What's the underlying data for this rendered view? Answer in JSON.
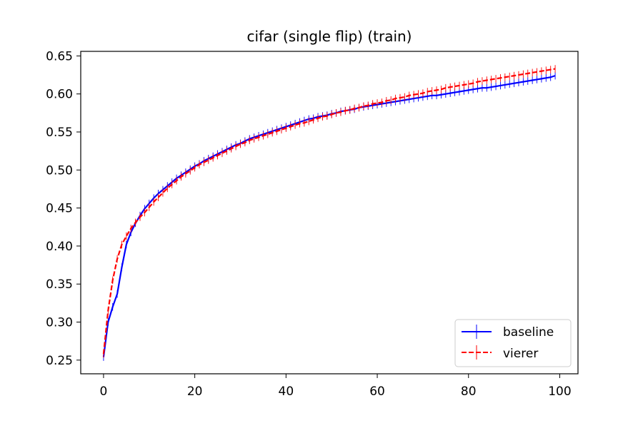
{
  "chart_data": {
    "type": "line",
    "title": "cifar (single flip) (train)",
    "xlabel": "",
    "ylabel": "",
    "xlim": [
      -5,
      104
    ],
    "ylim": [
      0.232,
      0.656
    ],
    "xticks": [
      0,
      20,
      40,
      60,
      80,
      100
    ],
    "yticks": [
      0.25,
      0.3,
      0.35,
      0.4,
      0.45,
      0.5,
      0.55,
      0.6,
      0.65
    ],
    "xtick_labels": [
      "0",
      "20",
      "40",
      "60",
      "80",
      "100"
    ],
    "ytick_labels": [
      "0.25",
      "0.30",
      "0.35",
      "0.40",
      "0.45",
      "0.50",
      "0.55",
      "0.60",
      "0.65"
    ],
    "grid": false,
    "legend_position": "lower-right",
    "error_bars": "vertical",
    "series": [
      {
        "name": "baseline",
        "color": "#0000ff",
        "line_style": "solid",
        "x": [
          0,
          1,
          2,
          3,
          4,
          5,
          6,
          7,
          8,
          9,
          10,
          11,
          12,
          13,
          14,
          15,
          16,
          17,
          18,
          19,
          20,
          21,
          22,
          23,
          24,
          25,
          26,
          27,
          28,
          29,
          30,
          31,
          32,
          33,
          34,
          35,
          36,
          37,
          38,
          39,
          40,
          41,
          42,
          43,
          44,
          45,
          46,
          47,
          48,
          49,
          50,
          51,
          52,
          53,
          54,
          55,
          56,
          57,
          58,
          59,
          60,
          61,
          62,
          63,
          64,
          65,
          66,
          67,
          68,
          69,
          70,
          71,
          72,
          73,
          74,
          75,
          76,
          77,
          78,
          79,
          80,
          81,
          82,
          83,
          84,
          85,
          86,
          87,
          88,
          89,
          90,
          91,
          92,
          93,
          94,
          95,
          96,
          97,
          98,
          99
        ],
        "y": [
          0.254,
          0.3,
          0.32,
          0.337,
          0.372,
          0.402,
          0.418,
          0.43,
          0.44,
          0.449,
          0.456,
          0.463,
          0.469,
          0.474,
          0.479,
          0.484,
          0.489,
          0.493,
          0.497,
          0.501,
          0.505,
          0.508,
          0.512,
          0.515,
          0.518,
          0.521,
          0.524,
          0.527,
          0.53,
          0.533,
          0.535,
          0.538,
          0.541,
          0.543,
          0.545,
          0.547,
          0.549,
          0.551,
          0.553,
          0.555,
          0.557,
          0.559,
          0.561,
          0.563,
          0.565,
          0.567,
          0.568,
          0.57,
          0.571,
          0.572,
          0.574,
          0.575,
          0.577,
          0.578,
          0.579,
          0.58,
          0.582,
          0.583,
          0.584,
          0.585,
          0.586,
          0.587,
          0.588,
          0.589,
          0.59,
          0.591,
          0.592,
          0.593,
          0.594,
          0.595,
          0.596,
          0.597,
          0.598,
          0.598,
          0.599,
          0.6,
          0.601,
          0.602,
          0.603,
          0.604,
          0.605,
          0.606,
          0.607,
          0.608,
          0.608,
          0.609,
          0.61,
          0.611,
          0.612,
          0.613,
          0.614,
          0.615,
          0.616,
          0.617,
          0.618,
          0.619,
          0.62,
          0.621,
          0.622,
          0.624
        ],
        "err": 0.005
      },
      {
        "name": "vierer",
        "color": "#ff0000",
        "line_style": "dashed",
        "x": [
          0,
          1,
          2,
          3,
          4,
          5,
          6,
          7,
          8,
          9,
          10,
          11,
          12,
          13,
          14,
          15,
          16,
          17,
          18,
          19,
          20,
          21,
          22,
          23,
          24,
          25,
          26,
          27,
          28,
          29,
          30,
          31,
          32,
          33,
          34,
          35,
          36,
          37,
          38,
          39,
          40,
          41,
          42,
          43,
          44,
          45,
          46,
          47,
          48,
          49,
          50,
          51,
          52,
          53,
          54,
          55,
          56,
          57,
          58,
          59,
          60,
          61,
          62,
          63,
          64,
          65,
          66,
          67,
          68,
          69,
          70,
          71,
          72,
          73,
          74,
          75,
          76,
          77,
          78,
          79,
          80,
          81,
          82,
          83,
          84,
          85,
          86,
          87,
          88,
          89,
          90,
          91,
          92,
          93,
          94,
          95,
          96,
          97,
          98,
          99
        ],
        "y": [
          0.258,
          0.315,
          0.355,
          0.383,
          0.402,
          0.413,
          0.423,
          0.431,
          0.438,
          0.444,
          0.451,
          0.458,
          0.464,
          0.47,
          0.476,
          0.481,
          0.486,
          0.491,
          0.495,
          0.499,
          0.503,
          0.507,
          0.51,
          0.513,
          0.516,
          0.519,
          0.522,
          0.525,
          0.528,
          0.531,
          0.534,
          0.536,
          0.539,
          0.541,
          0.543,
          0.545,
          0.547,
          0.549,
          0.551,
          0.553,
          0.555,
          0.557,
          0.559,
          0.561,
          0.562,
          0.564,
          0.566,
          0.568,
          0.57,
          0.571,
          0.573,
          0.575,
          0.576,
          0.578,
          0.579,
          0.581,
          0.582,
          0.584,
          0.585,
          0.587,
          0.588,
          0.589,
          0.591,
          0.592,
          0.594,
          0.595,
          0.596,
          0.598,
          0.599,
          0.6,
          0.601,
          0.603,
          0.604,
          0.605,
          0.606,
          0.608,
          0.609,
          0.61,
          0.611,
          0.612,
          0.613,
          0.614,
          0.616,
          0.617,
          0.618,
          0.619,
          0.62,
          0.621,
          0.622,
          0.623,
          0.624,
          0.625,
          0.626,
          0.627,
          0.628,
          0.629,
          0.63,
          0.631,
          0.632,
          0.633
        ],
        "err": 0.005
      }
    ]
  }
}
